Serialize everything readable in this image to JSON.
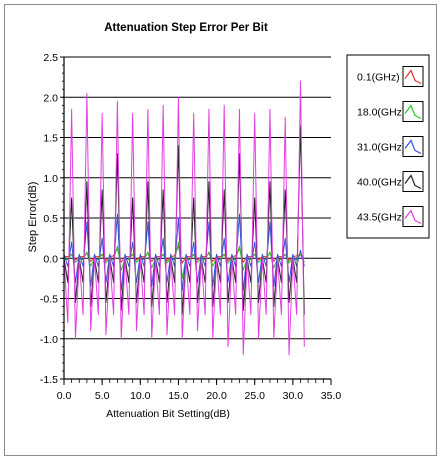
{
  "chart_data": {
    "type": "line",
    "title": "Attenuation Step Error Per Bit",
    "xlabel": "Attenuation Bit Setting(dB)",
    "ylabel": "Step Error(dB)",
    "xlim": [
      0,
      35
    ],
    "ylim": [
      -1.5,
      2.5
    ],
    "xticks": [
      "0.0",
      "5.0",
      "10.0",
      "15.0",
      "20.0",
      "25.0",
      "30.0",
      "35.0"
    ],
    "yticks": [
      "2.5",
      "2.0",
      "1.5",
      "1.0",
      "0.5",
      "0.0",
      "-0.5",
      "-1.0",
      "-1.5"
    ],
    "grid": "horizontal",
    "legend_position": "top-right",
    "x_step": 0.5,
    "x_count": 64,
    "series": [
      {
        "name": "0.1(GHz)",
        "color": "#e03030",
        "values": [
          0.02,
          0.02,
          0.05,
          -0.02,
          0.02,
          0.02,
          0.06,
          -0.04,
          0.02,
          0.02,
          0.05,
          -0.03,
          0.02,
          0.03,
          0.12,
          -0.05,
          0.02,
          0.02,
          0.05,
          -0.02,
          0.02,
          0.02,
          0.06,
          -0.04,
          0.02,
          0.02,
          0.05,
          -0.03,
          0.02,
          0.03,
          0.15,
          -0.06,
          0.02,
          0.02,
          0.05,
          -0.02,
          0.02,
          0.02,
          0.06,
          -0.04,
          0.02,
          0.02,
          0.05,
          -0.03,
          0.02,
          0.03,
          0.12,
          -0.05,
          0.02,
          0.02,
          0.05,
          -0.02,
          0.02,
          0.02,
          0.06,
          -0.04,
          0.02,
          0.02,
          0.05,
          -0.03,
          0.02,
          0.03,
          0.05,
          -0.05
        ]
      },
      {
        "name": "18.0(GHz)",
        "color": "#30c030",
        "values": [
          0.0,
          -0.02,
          0.05,
          -0.05,
          0.0,
          -0.02,
          0.08,
          -0.1,
          0.0,
          -0.02,
          0.05,
          -0.06,
          0.0,
          -0.02,
          0.15,
          -0.15,
          0.0,
          -0.02,
          0.05,
          -0.05,
          0.0,
          -0.02,
          0.08,
          -0.12,
          0.0,
          -0.02,
          0.05,
          -0.06,
          0.0,
          -0.02,
          0.2,
          -0.25,
          0.0,
          -0.02,
          0.05,
          -0.05,
          0.0,
          -0.02,
          0.08,
          -0.1,
          0.0,
          -0.02,
          0.05,
          -0.06,
          0.0,
          -0.02,
          0.15,
          -0.15,
          0.0,
          -0.02,
          0.05,
          -0.05,
          0.0,
          -0.02,
          0.08,
          -0.12,
          0.0,
          -0.02,
          0.05,
          -0.06,
          0.0,
          -0.02,
          0.05,
          -0.05
        ]
      },
      {
        "name": "31.0(GHz)",
        "color": "#3050e0",
        "values": [
          0.05,
          -0.1,
          0.2,
          -0.3,
          0.05,
          -0.1,
          0.45,
          -0.35,
          0.05,
          -0.1,
          0.25,
          -0.3,
          0.05,
          -0.1,
          0.55,
          -0.4,
          0.05,
          -0.1,
          0.2,
          -0.3,
          0.05,
          -0.1,
          0.45,
          -0.35,
          0.05,
          -0.1,
          0.25,
          -0.3,
          0.05,
          -0.1,
          0.5,
          -0.4,
          0.05,
          -0.1,
          0.2,
          -0.3,
          0.05,
          -0.1,
          0.45,
          -0.35,
          0.05,
          -0.1,
          0.25,
          -0.3,
          0.05,
          -0.1,
          0.55,
          -0.4,
          0.05,
          -0.1,
          0.2,
          -0.3,
          0.05,
          -0.1,
          0.45,
          -0.35,
          0.05,
          -0.1,
          0.25,
          -0.3,
          0.05,
          -0.1,
          0.1,
          -0.1
        ]
      },
      {
        "name": "40.0(GHz)",
        "color": "#202020",
        "values": [
          0.0,
          -0.3,
          0.75,
          -0.55,
          0.0,
          -0.3,
          0.95,
          -0.6,
          0.0,
          -0.3,
          0.85,
          -0.55,
          0.0,
          -0.3,
          1.3,
          -0.65,
          0.0,
          -0.3,
          0.75,
          -0.55,
          0.0,
          -0.3,
          0.95,
          -0.6,
          0.0,
          -0.3,
          0.85,
          -0.55,
          0.0,
          -0.3,
          1.4,
          -0.7,
          0.0,
          -0.3,
          0.75,
          -0.55,
          0.0,
          -0.3,
          0.95,
          -0.6,
          0.0,
          -0.3,
          0.85,
          -0.55,
          0.0,
          -0.3,
          1.3,
          -0.65,
          0.0,
          -0.3,
          0.75,
          -0.55,
          0.0,
          -0.3,
          0.95,
          -0.6,
          0.0,
          -0.3,
          0.85,
          -0.55,
          0.0,
          -0.3,
          1.65,
          -0.7
        ]
      },
      {
        "name": "43.5(GHz)",
        "color": "#e040e0",
        "values": [
          0.0,
          -0.8,
          1.85,
          -1.0,
          0.0,
          -0.7,
          2.05,
          -0.9,
          0.0,
          -0.7,
          1.8,
          -0.95,
          0.0,
          -0.7,
          1.95,
          -1.0,
          0.0,
          -0.7,
          1.8,
          -0.9,
          0.0,
          -0.7,
          1.85,
          -1.0,
          0.0,
          -0.7,
          1.9,
          -0.95,
          0.0,
          -0.7,
          2.0,
          -1.0,
          0.0,
          -0.7,
          1.8,
          -0.9,
          0.0,
          -0.7,
          1.85,
          -1.0,
          0.0,
          -0.7,
          1.9,
          -1.1,
          0.0,
          -0.7,
          1.85,
          -1.2,
          0.0,
          -0.7,
          1.8,
          -1.0,
          0.0,
          -0.7,
          1.85,
          -1.0,
          0.0,
          -0.7,
          1.75,
          -1.2,
          0.0,
          -0.7,
          2.2,
          -1.1
        ]
      }
    ]
  }
}
